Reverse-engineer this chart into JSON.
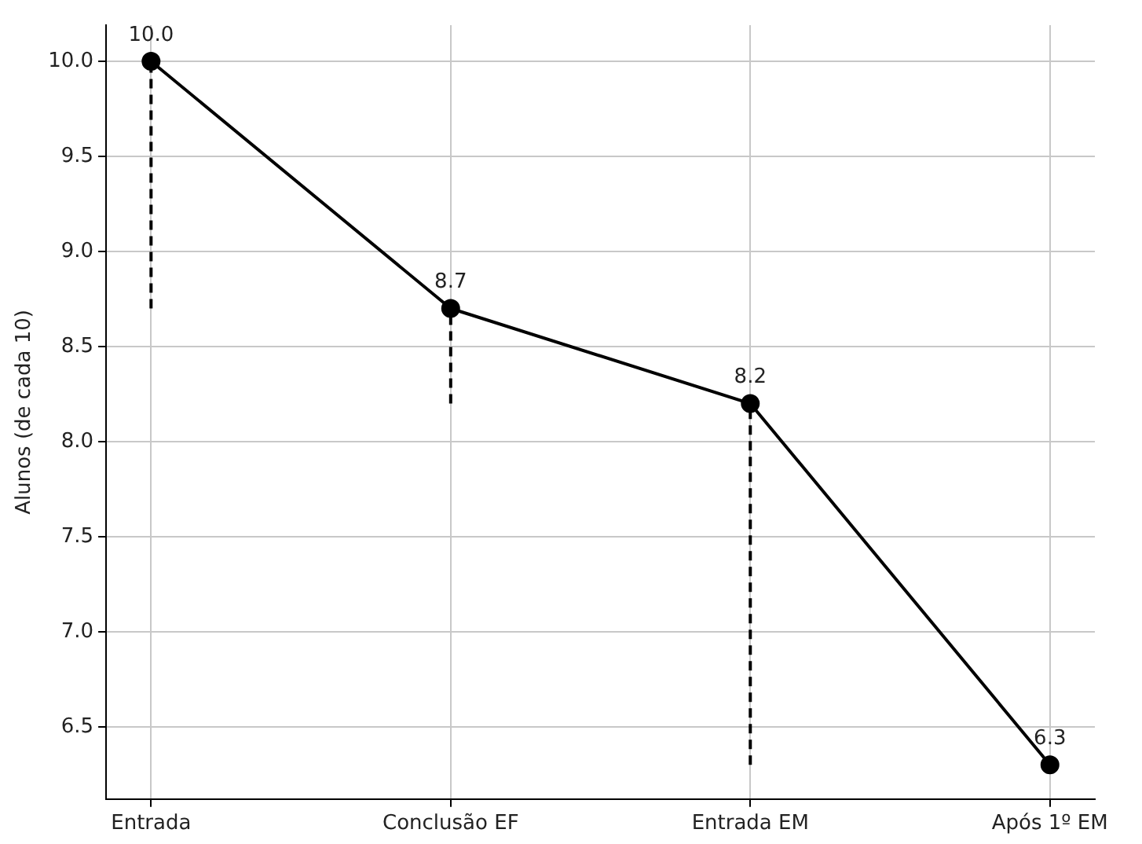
{
  "chart_data": {
    "type": "line",
    "ylabel": "Alunos (de cada 10)",
    "categories": [
      "Entrada",
      "Conclusão EF",
      "Entrada EM",
      "Após 1º EM"
    ],
    "series": [
      {
        "color": "#000000",
        "values": [
          10.0,
          8.7,
          8.2,
          6.3
        ],
        "value_labels": [
          "10.0",
          "8.7",
          "8.2",
          "6.3"
        ],
        "errors": [
          [
            8.7,
            10.0
          ],
          [
            8.2,
            8.7
          ],
          [
            6.3,
            8.2
          ],
          null
        ]
      }
    ],
    "ylim": [
      6.12,
      10.19
    ],
    "yticks": [
      {
        "value": 6.5,
        "label": "6.5"
      },
      {
        "value": 7.0,
        "label": "7.0"
      },
      {
        "value": 7.5,
        "label": "7.5"
      },
      {
        "value": 8.0,
        "label": "8.0"
      },
      {
        "value": 8.5,
        "label": "8.5"
      },
      {
        "value": 9.0,
        "label": "9.0"
      },
      {
        "value": 9.5,
        "label": "9.5"
      },
      {
        "value": 10.0,
        "label": "10.0"
      }
    ],
    "grid": true,
    "marker": "circle",
    "line_style": "solid"
  }
}
